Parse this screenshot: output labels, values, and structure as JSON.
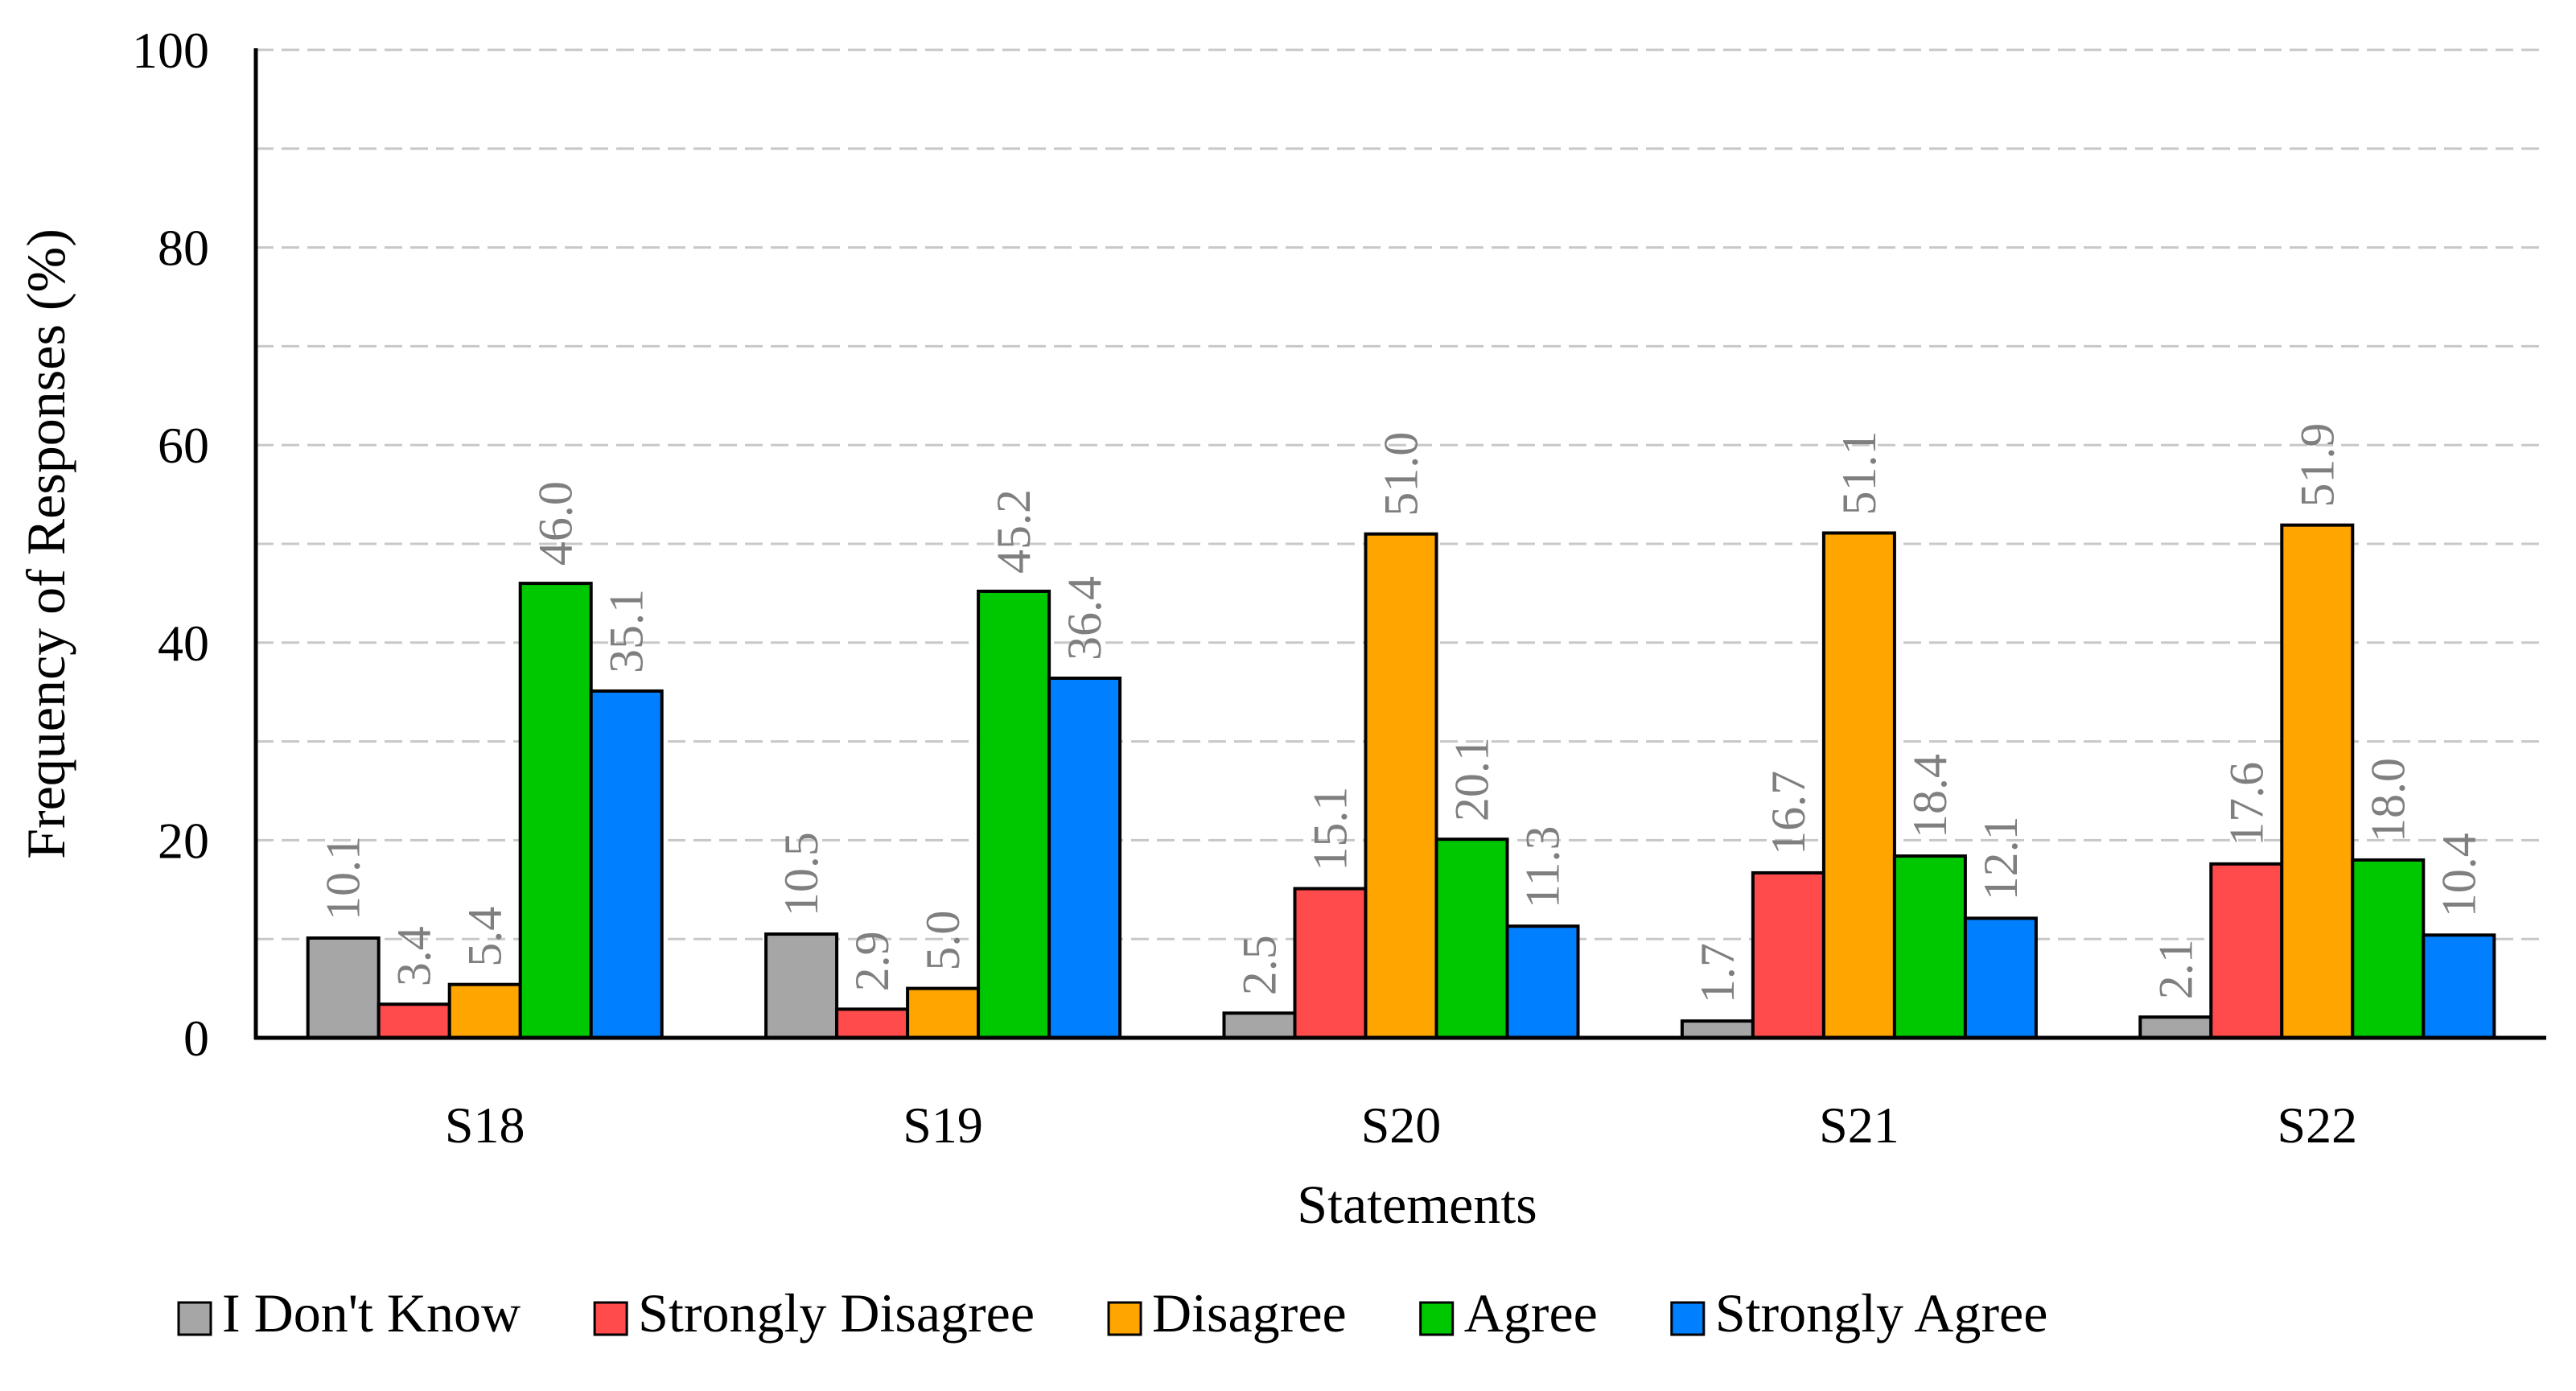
{
  "chart_data": {
    "type": "bar",
    "categories": [
      "S18",
      "S19",
      "S20",
      "S21",
      "S22"
    ],
    "series": [
      {
        "name": "I Don't Know",
        "color": "#a6a6a6",
        "values": [
          10.1,
          10.5,
          2.5,
          1.7,
          2.1
        ]
      },
      {
        "name": "Strongly Disagree",
        "color": "#ff4b4b",
        "values": [
          3.4,
          2.9,
          15.1,
          16.7,
          17.6
        ]
      },
      {
        "name": "Disagree",
        "color": "#ffa500",
        "values": [
          5.4,
          5.0,
          51.0,
          51.1,
          51.9
        ]
      },
      {
        "name": "Agree",
        "color": "#00c800",
        "values": [
          46.0,
          45.2,
          20.1,
          18.4,
          18.0
        ]
      },
      {
        "name": "Strongly Agree",
        "color": "#0080ff",
        "values": [
          35.1,
          36.4,
          11.3,
          12.1,
          10.4
        ]
      }
    ],
    "data_labels": [
      [
        "10.1",
        "10.5",
        "2.5",
        "1.7",
        "2.1"
      ],
      [
        "3.4",
        "2.9",
        "15.1",
        "16.7",
        "17.6"
      ],
      [
        "5.4",
        "5.0",
        "51.0",
        "51.1",
        "51.9"
      ],
      [
        "46.0",
        "45.2",
        "20.1",
        "18.4",
        "18.0"
      ],
      [
        "35.1",
        "36.4",
        "11.3",
        "12.1",
        "10.4"
      ]
    ],
    "xlabel": "Statements",
    "ylabel": "Frequency of Responses (%)",
    "ylim": [
      0,
      100
    ],
    "yticks": [
      "0",
      "20",
      "40",
      "60",
      "80",
      "100"
    ],
    "grid": "dashed horizontal every 10",
    "legend_position": "bottom",
    "data_label_color": "#7f7f7f"
  }
}
